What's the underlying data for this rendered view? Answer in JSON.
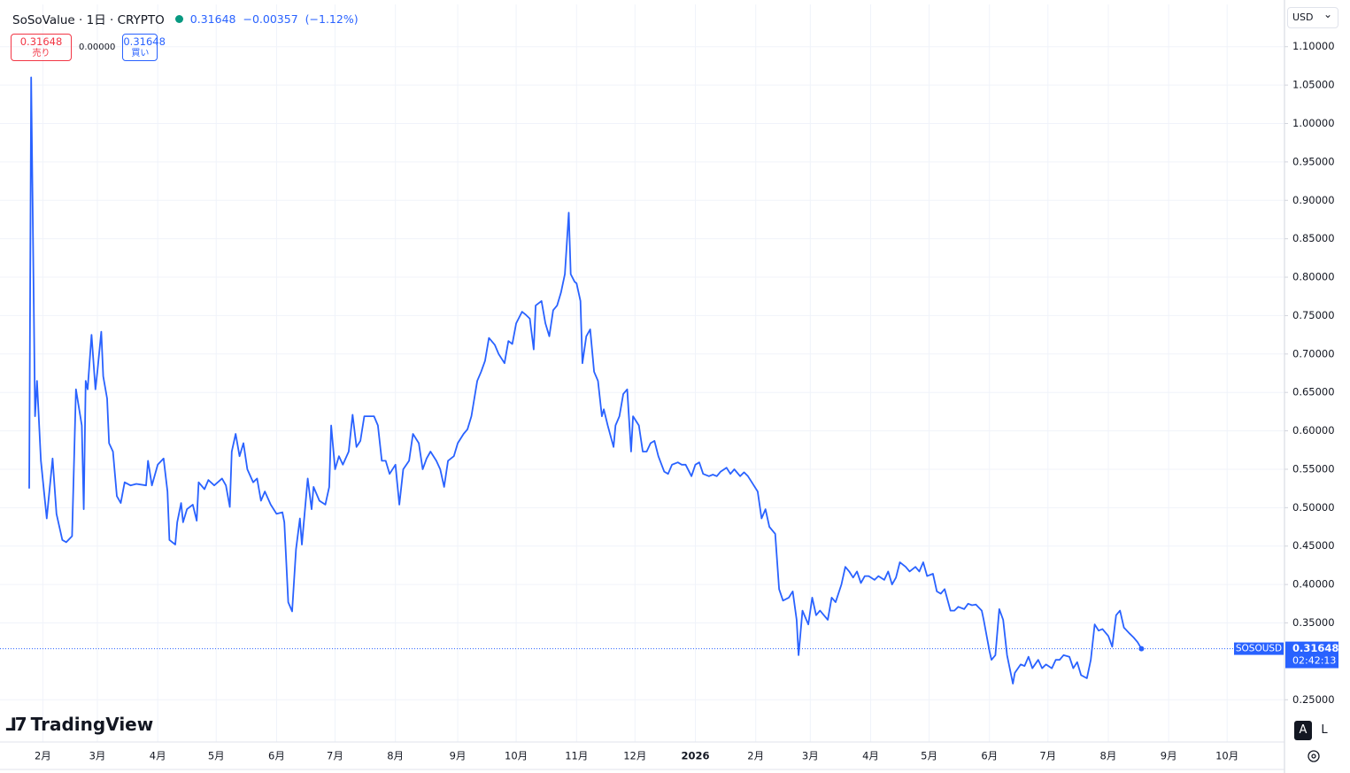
{
  "header": {
    "title": "SoSoValue · 1日 · CRYPTO",
    "last": "0.31648",
    "change": "−0.00357",
    "change_pct": "(−1.12%)"
  },
  "trade": {
    "sell_price": "0.31648",
    "sell_label": "売り",
    "spread": "0.00000",
    "buy_price": "0.31648",
    "buy_label": "買い"
  },
  "currency": "USD",
  "logo": "TradingView",
  "buttons": [
    "A",
    "L"
  ],
  "chart_data": {
    "type": "line",
    "color": "#2962ff",
    "grid": true,
    "x": [
      0,
      1,
      3,
      4,
      6,
      9,
      11,
      12,
      14,
      17,
      19,
      22,
      24,
      27,
      28,
      29,
      30,
      32,
      34,
      35,
      37,
      38,
      40,
      41,
      43,
      45,
      47,
      49,
      52,
      55,
      60,
      61,
      63,
      66,
      69,
      71,
      72,
      75,
      76,
      78,
      79,
      81,
      84,
      86,
      87,
      90,
      92,
      95,
      99,
      101,
      103,
      104,
      106,
      108,
      110,
      112,
      115,
      117,
      119,
      121,
      124,
      127,
      130,
      131,
      133,
      135,
      137,
      139,
      140,
      143,
      145,
      146,
      149,
      152,
      154,
      155,
      157,
      159,
      161,
      164,
      166,
      168,
      170,
      172,
      175,
      177,
      179,
      181,
      183,
      185,
      188,
      190,
      192,
      195,
      197,
      200,
      202,
      204,
      206,
      209,
      211,
      213,
      215,
      218,
      220,
      223,
      225,
      227,
      230,
      232,
      234,
      236,
      239,
      241,
      244,
      246,
      248,
      250,
      253,
      255,
      257,
      259,
      260,
      263,
      265,
      267,
      269,
      271,
      273,
      275,
      277,
      278,
      280,
      281,
      283,
      284,
      286,
      288,
      290,
      292,
      294,
      295,
      297,
      300,
      301,
      303,
      305,
      307,
      309,
      310,
      313,
      315,
      317,
      319,
      321,
      323,
      326,
      328,
      330,
      333,
      335,
      337,
      340,
      342,
      344,
      346,
      349,
      351,
      353,
      355,
      358,
      360,
      362,
      365,
      367,
      369,
      371,
      374,
      376,
      378,
      380,
      383,
      385,
      387,
      390,
      392,
      394,
      395,
      397,
      400,
      402,
      404,
      406,
      408,
      410,
      412,
      414,
      417,
      419,
      421,
      423,
      425,
      427,
      429,
      431,
      434,
      436,
      439,
      441,
      443,
      445,
      447,
      450,
      452,
      455,
      457,
      459,
      461,
      464,
      466,
      468,
      470,
      473,
      475,
      477,
      480,
      482,
      484,
      486,
      489,
      490,
      493,
      494,
      496,
      498,
      500,
      502,
      505,
      506,
      509,
      511,
      513,
      515,
      518,
      520,
      522,
      525,
      527,
      529,
      531,
      534,
      536,
      538,
      540,
      543,
      545,
      547,
      549,
      551,
      554,
      556,
      558,
      560,
      562,
      565,
      567,
      569,
      571
    ],
    "values": [
      0.525,
      1.06,
      0.619,
      0.665,
      0.561,
      0.486,
      0.538,
      0.564,
      0.492,
      0.458,
      0.455,
      0.463,
      0.654,
      0.607,
      0.498,
      0.665,
      0.654,
      0.725,
      0.654,
      0.677,
      0.729,
      0.671,
      0.642,
      0.584,
      0.573,
      0.515,
      0.506,
      0.533,
      0.529,
      0.531,
      0.529,
      0.561,
      0.529,
      0.556,
      0.564,
      0.521,
      0.458,
      0.452,
      0.481,
      0.506,
      0.481,
      0.498,
      0.504,
      0.483,
      0.533,
      0.524,
      0.536,
      0.529,
      0.538,
      0.529,
      0.501,
      0.573,
      0.596,
      0.567,
      0.584,
      0.55,
      0.533,
      0.538,
      0.509,
      0.521,
      0.504,
      0.492,
      0.494,
      0.481,
      0.377,
      0.365,
      0.446,
      0.486,
      0.452,
      0.538,
      0.498,
      0.527,
      0.509,
      0.504,
      0.527,
      0.607,
      0.55,
      0.567,
      0.556,
      0.573,
      0.621,
      0.579,
      0.587,
      0.619,
      0.619,
      0.619,
      0.607,
      0.561,
      0.561,
      0.544,
      0.556,
      0.504,
      0.55,
      0.561,
      0.596,
      0.584,
      0.55,
      0.564,
      0.573,
      0.561,
      0.55,
      0.527,
      0.561,
      0.567,
      0.584,
      0.596,
      0.602,
      0.619,
      0.665,
      0.677,
      0.691,
      0.721,
      0.712,
      0.7,
      0.688,
      0.717,
      0.713,
      0.74,
      0.755,
      0.751,
      0.746,
      0.706,
      0.763,
      0.769,
      0.74,
      0.723,
      0.757,
      0.763,
      0.78,
      0.804,
      0.884,
      0.804,
      0.794,
      0.792,
      0.769,
      0.688,
      0.723,
      0.732,
      0.677,
      0.665,
      0.619,
      0.628,
      0.607,
      0.579,
      0.607,
      0.619,
      0.648,
      0.654,
      0.573,
      0.619,
      0.607,
      0.573,
      0.573,
      0.584,
      0.587,
      0.567,
      0.547,
      0.544,
      0.556,
      0.559,
      0.556,
      0.556,
      0.541,
      0.556,
      0.559,
      0.544,
      0.541,
      0.543,
      0.541,
      0.547,
      0.552,
      0.544,
      0.55,
      0.541,
      0.546,
      0.541,
      0.533,
      0.521,
      0.486,
      0.498,
      0.475,
      0.466,
      0.394,
      0.379,
      0.383,
      0.391,
      0.354,
      0.308,
      0.366,
      0.348,
      0.383,
      0.36,
      0.366,
      0.36,
      0.354,
      0.383,
      0.377,
      0.4,
      0.423,
      0.417,
      0.409,
      0.417,
      0.402,
      0.411,
      0.411,
      0.406,
      0.411,
      0.406,
      0.417,
      0.4,
      0.409,
      0.429,
      0.423,
      0.417,
      0.423,
      0.417,
      0.429,
      0.411,
      0.414,
      0.391,
      0.388,
      0.394,
      0.366,
      0.366,
      0.371,
      0.368,
      0.375,
      0.373,
      0.374,
      0.366,
      0.354,
      0.313,
      0.302,
      0.308,
      0.368,
      0.354,
      0.308,
      0.271,
      0.285,
      0.296,
      0.294,
      0.306,
      0.291,
      0.302,
      0.291,
      0.296,
      0.291,
      0.302,
      0.302,
      0.308,
      0.306,
      0.291,
      0.299,
      0.282,
      0.278,
      0.302,
      0.348,
      0.34,
      0.342,
      0.333,
      0.319,
      0.36,
      0.366,
      0.344,
      0.336,
      0.331,
      0.325,
      0.31648
    ],
    "last_price": 0.31648,
    "price_tag": {
      "symbol": "SOSOUSD",
      "countdown": "02:42:13"
    },
    "xlim": [
      -15,
      644
    ],
    "xticks": [
      {
        "value": 7,
        "label": "2月"
      },
      {
        "value": 35,
        "label": "3月"
      },
      {
        "value": 66,
        "label": "4月"
      },
      {
        "value": 96,
        "label": "5月"
      },
      {
        "value": 127,
        "label": "6月"
      },
      {
        "value": 157,
        "label": "7月"
      },
      {
        "value": 188,
        "label": "8月"
      },
      {
        "value": 220,
        "label": "9月"
      },
      {
        "value": 250,
        "label": "10月"
      },
      {
        "value": 281,
        "label": "11月"
      },
      {
        "value": 311,
        "label": "12月"
      },
      {
        "value": 342,
        "label": "2026"
      },
      {
        "value": 373,
        "label": "2月"
      },
      {
        "value": 401,
        "label": "3月"
      },
      {
        "value": 432,
        "label": "4月"
      },
      {
        "value": 462,
        "label": "5月"
      },
      {
        "value": 493,
        "label": "6月"
      },
      {
        "value": 523,
        "label": "7月"
      },
      {
        "value": 554,
        "label": "8月"
      },
      {
        "value": 585,
        "label": "9月"
      },
      {
        "value": 615,
        "label": "10月"
      }
    ],
    "ylim": [
      0.195,
      1.155
    ],
    "yticks": [
      {
        "value": 0.25,
        "label": "0.25000"
      },
      {
        "value": 0.35,
        "label": "0.35000"
      },
      {
        "value": 0.4,
        "label": "0.40000"
      },
      {
        "value": 0.45,
        "label": "0.45000"
      },
      {
        "value": 0.5,
        "label": "0.50000"
      },
      {
        "value": 0.55,
        "label": "0.55000"
      },
      {
        "value": 0.6,
        "label": "0.60000"
      },
      {
        "value": 0.65,
        "label": "0.65000"
      },
      {
        "value": 0.7,
        "label": "0.70000"
      },
      {
        "value": 0.75,
        "label": "0.75000"
      },
      {
        "value": 0.8,
        "label": "0.80000"
      },
      {
        "value": 0.85,
        "label": "0.85000"
      },
      {
        "value": 0.9,
        "label": "0.90000"
      },
      {
        "value": 0.95,
        "label": "0.95000"
      },
      {
        "value": 1.0,
        "label": "1.00000"
      },
      {
        "value": 1.05,
        "label": "1.05000"
      },
      {
        "value": 1.1,
        "label": "1.10000"
      }
    ]
  }
}
